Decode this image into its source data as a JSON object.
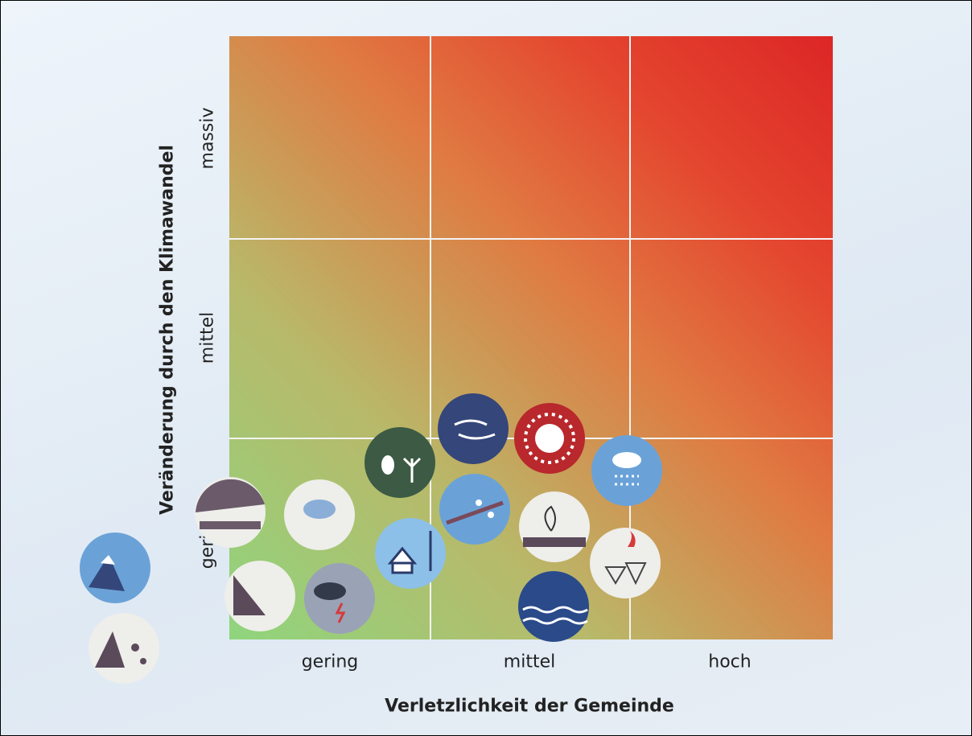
{
  "y_axis": {
    "title": "Veränderung durch den Klimawandel",
    "levels": [
      "gering",
      "mittel",
      "massiv"
    ]
  },
  "x_axis": {
    "title": "Verletzlichkeit der Gemeinde",
    "levels": [
      "gering",
      "mittel",
      "hoch"
    ]
  }
}
